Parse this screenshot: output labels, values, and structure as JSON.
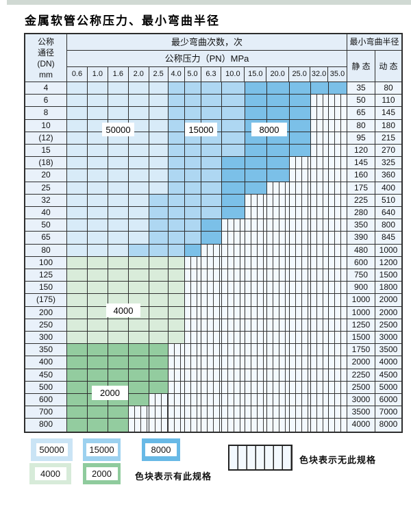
{
  "title": "金属软管公称压力、最小弯曲半径",
  "table": {
    "dn_header": [
      "公称",
      "通径",
      "(DN)",
      "mm"
    ],
    "cycles_header": "最少弯曲次数，次",
    "pn_header": "公称压力（PN）MPa",
    "radius_header": "最小弯曲半径",
    "static_header": "静 态",
    "dynamic_header": "动 态",
    "pressures": [
      "0.6",
      "1.0",
      "1.6",
      "2.0",
      "2.5",
      "4.0",
      "5.0",
      "6.3",
      "10.0",
      "15.0",
      "20.0",
      "25.0",
      "32.0",
      "35.0"
    ],
    "rows": [
      {
        "dn": "4",
        "static": "35",
        "dynamic": "80",
        "type": "blue",
        "z1": 5,
        "z2": 9,
        "end": 14
      },
      {
        "dn": "6",
        "static": "50",
        "dynamic": "110",
        "type": "blue",
        "z1": 5,
        "z2": 9,
        "end": 12
      },
      {
        "dn": "8",
        "static": "65",
        "dynamic": "145",
        "type": "blue",
        "z1": 5,
        "z2": 9,
        "end": 12
      },
      {
        "dn": "10",
        "static": "80",
        "dynamic": "180",
        "type": "blue",
        "z1": 5,
        "z2": 9,
        "end": 12
      },
      {
        "dn": "(12)",
        "static": "95",
        "dynamic": "215",
        "type": "blue",
        "z1": 5,
        "z2": 9,
        "end": 12
      },
      {
        "dn": "15",
        "static": "120",
        "dynamic": "270",
        "type": "blue",
        "z1": 5,
        "z2": 9,
        "end": 12
      },
      {
        "dn": "(18)",
        "static": "145",
        "dynamic": "325",
        "type": "blue",
        "z1": 5,
        "z2": 8,
        "end": 11
      },
      {
        "dn": "20",
        "static": "160",
        "dynamic": "360",
        "type": "blue",
        "z1": 5,
        "z2": 8,
        "end": 11
      },
      {
        "dn": "25",
        "static": "175",
        "dynamic": "400",
        "type": "blue",
        "z1": 5,
        "z2": 8,
        "end": 10
      },
      {
        "dn": "32",
        "static": "225",
        "dynamic": "510",
        "type": "blue",
        "z1": 4,
        "z2": 8,
        "end": 9
      },
      {
        "dn": "40",
        "static": "280",
        "dynamic": "640",
        "type": "blue",
        "z1": 4,
        "z2": 8,
        "end": 9
      },
      {
        "dn": "50",
        "static": "350",
        "dynamic": "800",
        "type": "blue",
        "z1": 4,
        "z2": 7,
        "end": 8
      },
      {
        "dn": "65",
        "static": "390",
        "dynamic": "845",
        "type": "blue",
        "z1": 4,
        "z2": 7,
        "end": 8
      },
      {
        "dn": "80",
        "static": "480",
        "dynamic": "1000",
        "type": "blue",
        "z1": 3,
        "z2": 6,
        "end": 7
      },
      {
        "dn": "100",
        "static": "600",
        "dynamic": "1200",
        "type": "green",
        "shade": "g1",
        "end": 6
      },
      {
        "dn": "125",
        "static": "750",
        "dynamic": "1500",
        "type": "green",
        "shade": "g1",
        "end": 6
      },
      {
        "dn": "150",
        "static": "900",
        "dynamic": "1800",
        "type": "green",
        "shade": "g1",
        "end": 6
      },
      {
        "dn": "(175)",
        "static": "1000",
        "dynamic": "2000",
        "type": "green",
        "shade": "g1",
        "end": 6
      },
      {
        "dn": "200",
        "static": "1000",
        "dynamic": "2000",
        "type": "green",
        "shade": "g1",
        "end": 6
      },
      {
        "dn": "250",
        "static": "1250",
        "dynamic": "2500",
        "type": "green",
        "shade": "g1",
        "end": 6
      },
      {
        "dn": "300",
        "static": "1500",
        "dynamic": "3000",
        "type": "green",
        "shade": "g1",
        "end": 6
      },
      {
        "dn": "350",
        "static": "1750",
        "dynamic": "3500",
        "type": "green",
        "shade": "g2",
        "end": 5
      },
      {
        "dn": "400",
        "static": "2000",
        "dynamic": "4000",
        "type": "green",
        "shade": "g2",
        "end": 5
      },
      {
        "dn": "450",
        "static": "2250",
        "dynamic": "4500",
        "type": "green",
        "shade": "g2",
        "end": 5
      },
      {
        "dn": "500",
        "static": "2500",
        "dynamic": "5000",
        "type": "green",
        "shade": "g2",
        "end": 5
      },
      {
        "dn": "600",
        "static": "3000",
        "dynamic": "6000",
        "type": "green",
        "shade": "g2",
        "end": 4
      },
      {
        "dn": "700",
        "static": "3500",
        "dynamic": "7000",
        "type": "green",
        "shade": "g2",
        "end": 3
      },
      {
        "dn": "800",
        "static": "4000",
        "dynamic": "8000",
        "type": "green",
        "shade": "g2",
        "end": 3
      }
    ],
    "zone_legend_meaning": {
      "z1": "50000",
      "z2": "15000",
      "z3": "8000",
      "g1": "4000",
      "g2": "2000",
      "ns": "无此规格"
    }
  },
  "overlays": {
    "c50000": "50000",
    "c15000": "15000",
    "c8000": "8000",
    "c4000": "4000",
    "c2000": "2000"
  },
  "legend": {
    "b50000": "50000",
    "b15000": "15000",
    "b8000": "8000",
    "b4000": "4000",
    "b2000": "2000",
    "has_spec_note": "色块表示有此规格",
    "no_spec_note": "色块表示无此规格"
  },
  "colors": {
    "c50000": "#d8ebf8",
    "c15000": "#aed7f2",
    "c8000": "#7bc0e8",
    "c4000": "#d9ecda",
    "c2000": "#93cc9f",
    "c50000_legend": "#cae4f5",
    "c15000_legend": "#9cd1ef",
    "c8000_legend": "#68b9e6",
    "c4000_legend": "#d7ebd9",
    "c2000_legend": "#8fcb9d",
    "header_bg": "#e4eef8",
    "dn_col_bg": "#e9f1fa",
    "value_col_bg": "#eef5fc",
    "no_spec_bg": "#f3f9fe",
    "top_strip": "#d0d9d3"
  }
}
